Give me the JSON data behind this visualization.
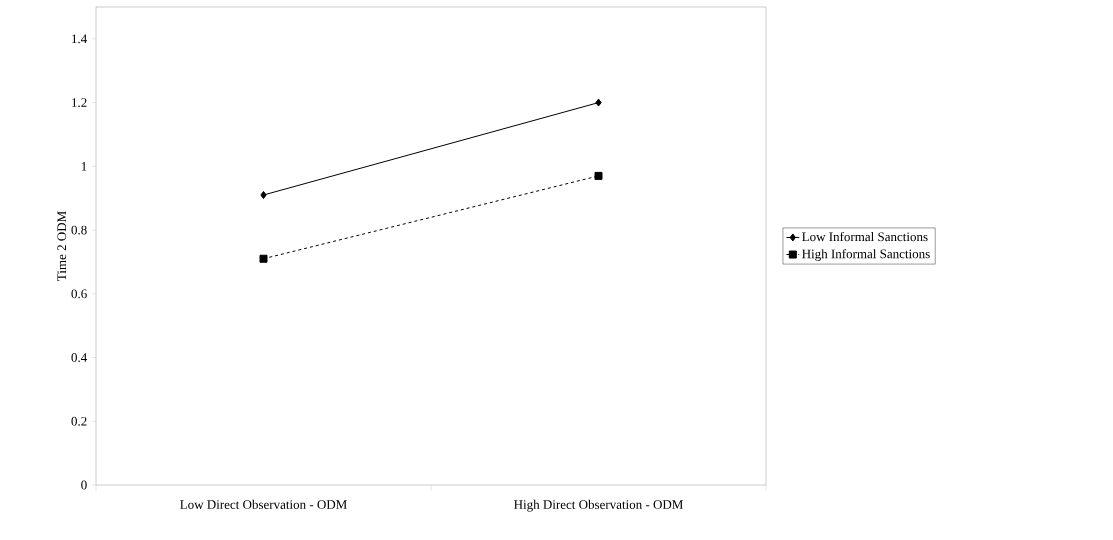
{
  "chart_data": {
    "type": "line",
    "categories": [
      "Low Direct Observation - ODM",
      "High Direct Observation - ODM"
    ],
    "ylabel": "Time 2 ODM",
    "ylim": [
      0,
      1.5
    ],
    "yticks": [
      0,
      0.2,
      0.4,
      0.6,
      0.8,
      1,
      1.2,
      1.4
    ],
    "grid": false,
    "legend": "right",
    "series": [
      {
        "name": "Low Informal Sanctions",
        "color": "#000000",
        "values": [
          0.91,
          1.2
        ],
        "marker": "diamond",
        "line_style": "solid"
      },
      {
        "name": "High Informal Sanctions",
        "color": "#000000",
        "values": [
          0.71,
          0.97
        ],
        "marker": "square",
        "line_style": "dashed"
      }
    ]
  }
}
